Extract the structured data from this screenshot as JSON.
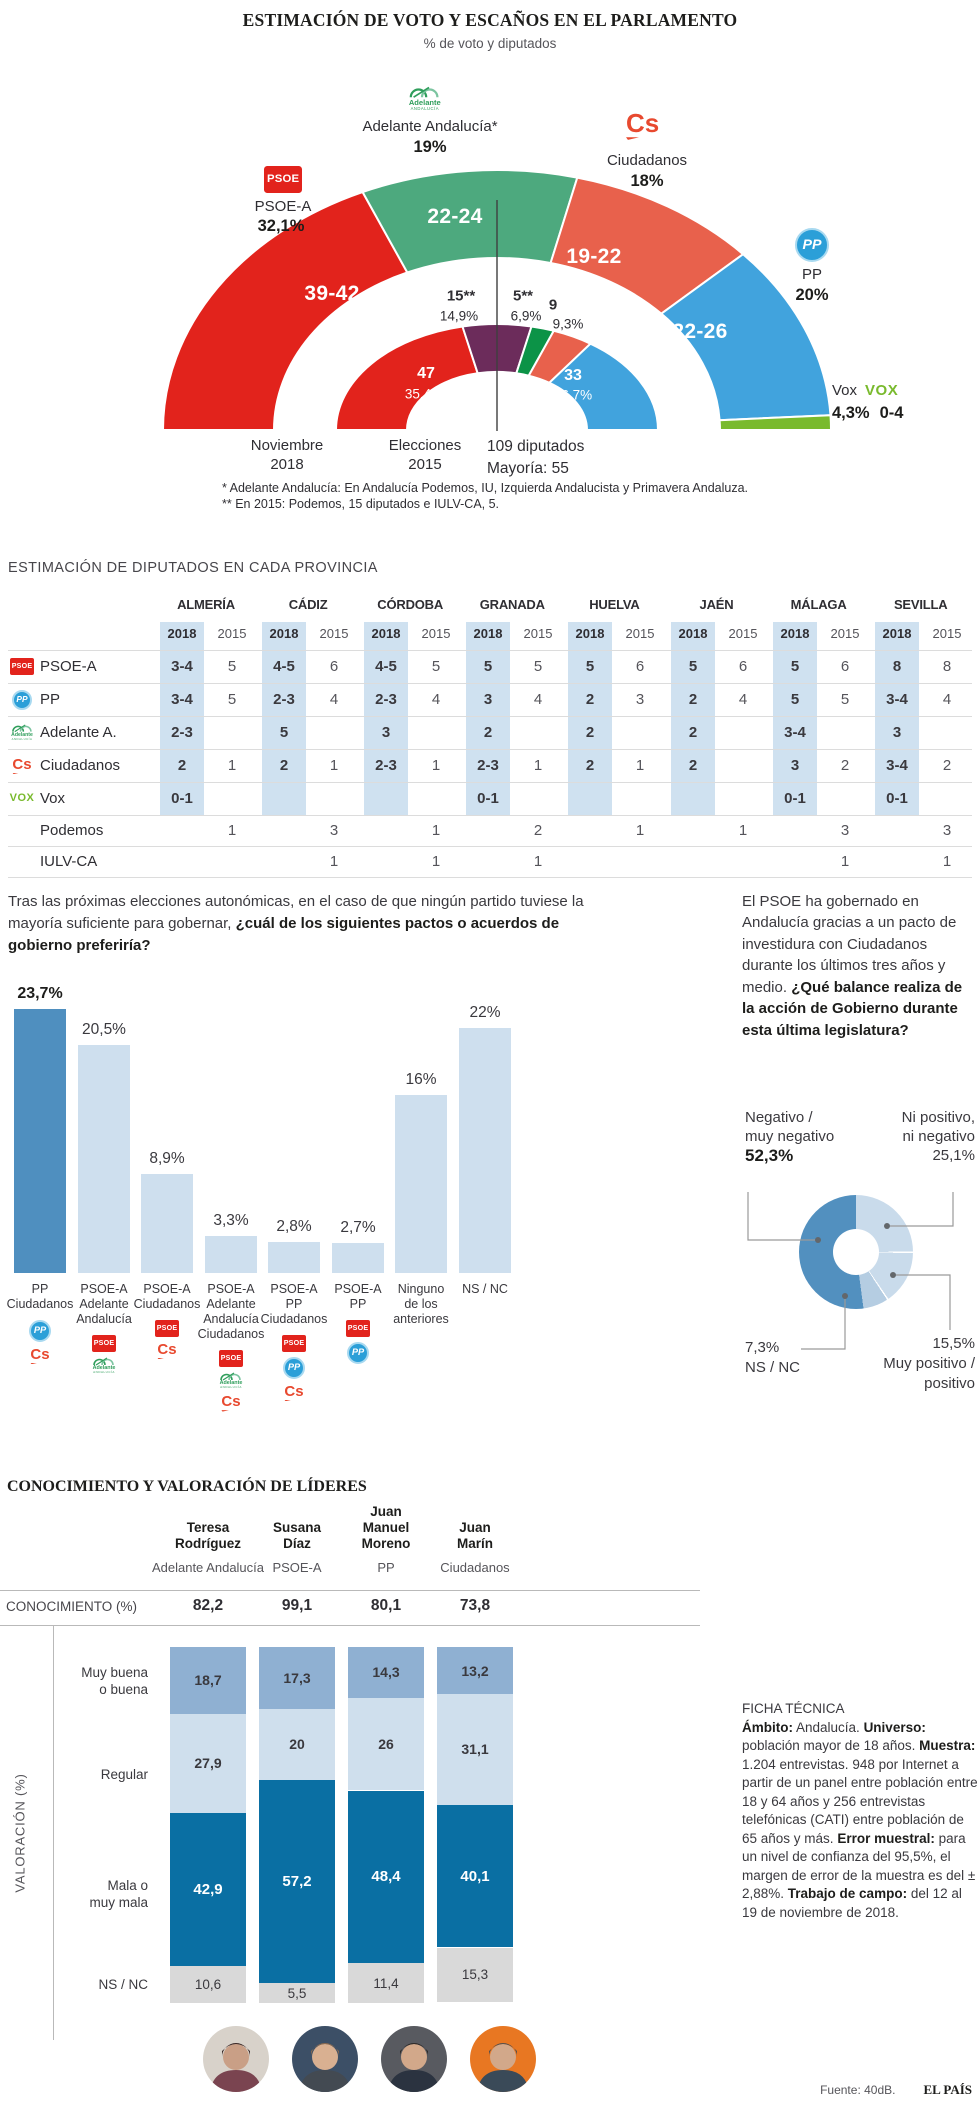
{
  "hemicycle": {
    "title": "ESTIMACIÓN DE VOTO Y ESCAÑOS EN EL PARLAMENTO",
    "subtitle": "% de voto y diputados",
    "axis_2018": [
      "Noviembre",
      "2018"
    ],
    "axis_2015": [
      "Elecciones",
      "2015"
    ],
    "total_label": [
      "109 diputados",
      "Mayoría: 55"
    ],
    "footnote1": "* Adelante Andalucía: En Andalucía Podemos, IU, Izquierda Andalucista y Primavera Andaluza.",
    "footnote2": "** En 2015: Podemos, 15 diputados e IULV-CA, 5.",
    "chart_data": {
      "type": "hemicycle",
      "total_seats": 109,
      "majority": 55,
      "outer_ring_2018": [
        {
          "party": "PSOE-A",
          "vote_pct": "32,1%",
          "seats_label": "39-42",
          "seats": 40.5,
          "color": "#e2231c",
          "logo": "psoe"
        },
        {
          "party": "Adelante Andalucía*",
          "vote_pct": "19%",
          "seats_label": "22-24",
          "seats": 23,
          "color": "#4da97e",
          "logo": "adelante"
        },
        {
          "party": "Ciudadanos",
          "vote_pct": "18%",
          "seats_label": "19-22",
          "seats": 20.5,
          "color": "#e8614c",
          "logo": "cs"
        },
        {
          "party": "PP",
          "vote_pct": "20%",
          "seats_label": "22-26",
          "seats": 24,
          "color": "#41a3dd",
          "logo": "pp"
        },
        {
          "party": "Vox",
          "vote_pct": "4,3%",
          "seats_label": "0-4",
          "seats": 2,
          "color": "#79ba2d",
          "logo": "vox"
        }
      ],
      "inner_ring_2015": [
        {
          "party": "PSOE",
          "seats": 47,
          "seats_label": "47",
          "vote_pct": "35,4%",
          "color": "#e2231c"
        },
        {
          "party": "Podemos",
          "seats": 15,
          "seats_label": "15**",
          "vote_pct": "14,9%",
          "color": "#6c2c5b"
        },
        {
          "party": "IULV-CA",
          "seats": 5,
          "seats_label": "5**",
          "vote_pct": "6,9%",
          "color": "#0c9347"
        },
        {
          "party": "Ciudadanos",
          "seats": 9,
          "seats_label": "9",
          "vote_pct": "9,3%",
          "color": "#e8614c"
        },
        {
          "party": "PP",
          "seats": 33,
          "seats_label": "33",
          "vote_pct": "26,7%",
          "color": "#41a3dd"
        }
      ]
    }
  },
  "logos": {
    "psoe": {
      "text": "PSOE",
      "bg": "#e2231c",
      "fg": "#ffffff"
    },
    "pp": {
      "text": "PP",
      "bg": "#2b9fd8",
      "ring": "#a8d9f0",
      "fg": "#ffffff"
    },
    "cs": {
      "text": "Cs",
      "color": "#e8492f"
    },
    "adelante": {
      "line1": "Adelante",
      "line2": "ANDALUCÍA",
      "color": "#2f9e5b",
      "arc2": "#7cc4a0"
    },
    "vox": {
      "text": "VOX",
      "color": "#79ba2d"
    }
  },
  "table": {
    "title": "ESTIMACIÓN DE DIPUTADOS EN CADA PROVINCIA",
    "provinces": [
      "ALMERÍA",
      "CÁDIZ",
      "CÓRDOBA",
      "GRANADA",
      "HUELVA",
      "JAÉN",
      "MÁLAGA",
      "SEVILLA"
    ],
    "years": [
      "2018",
      "2015"
    ],
    "highlight_color": "#cfe1f0",
    "rows": [
      {
        "party": "PSOE-A",
        "logo": "psoe",
        "values": [
          "3-4",
          "5",
          "4-5",
          "6",
          "4-5",
          "5",
          "5",
          "5",
          "5",
          "6",
          "5",
          "6",
          "5",
          "6",
          "8",
          "8"
        ]
      },
      {
        "party": "PP",
        "logo": "pp",
        "values": [
          "3-4",
          "5",
          "2-3",
          "4",
          "2-3",
          "4",
          "3",
          "4",
          "2",
          "3",
          "2",
          "4",
          "5",
          "5",
          "3-4",
          "4"
        ]
      },
      {
        "party": "Adelante A.",
        "logo": "adelante",
        "values": [
          "2-3",
          "",
          "5",
          "",
          "3",
          "",
          "2",
          "",
          "2",
          "",
          "2",
          "",
          "3-4",
          "",
          "3",
          ""
        ]
      },
      {
        "party": "Ciudadanos",
        "logo": "cs",
        "values": [
          "2",
          "1",
          "2",
          "1",
          "2-3",
          "1",
          "2-3",
          "1",
          "2",
          "1",
          "2",
          "",
          "3",
          "2",
          "3-4",
          "2"
        ]
      },
      {
        "party": "Vox",
        "logo": "vox",
        "values": [
          "0-1",
          "",
          "",
          "",
          "",
          "",
          "0-1",
          "",
          "",
          "",
          "",
          "",
          "0-1",
          "",
          "0-1",
          ""
        ]
      }
    ],
    "rows_2015_only": [
      {
        "party": "Podemos",
        "values": [
          "",
          "1",
          "",
          "3",
          "",
          "1",
          "",
          "2",
          "",
          "1",
          "",
          "1",
          "",
          "3",
          "",
          "3"
        ]
      },
      {
        "party": "IULV-CA",
        "values": [
          "",
          "",
          "",
          "1",
          "",
          "1",
          "",
          "1",
          "",
          "",
          "",
          "",
          "",
          "1",
          "",
          "1"
        ]
      }
    ]
  },
  "pactos": {
    "question": [
      {
        "t": "Tras las próximas elecciones autonómicas, en el caso de que ningún partido tuviese la mayoría suficiente para gobernar, "
      },
      {
        "t": "¿cuál de los siguientes pactos o acuerdos de gobierno preferiría?",
        "b": true
      }
    ],
    "chart_data": {
      "type": "bar",
      "categories": [
        [
          "PP",
          "Ciudadanos"
        ],
        [
          "PSOE-A",
          "Adelante",
          "Andalucía"
        ],
        [
          "PSOE-A",
          "Ciudadanos"
        ],
        [
          "PSOE-A",
          "Adelante",
          "Andalucía",
          "Ciudadanos"
        ],
        [
          "PSOE-A",
          "PP",
          "Ciudadanos"
        ],
        [
          "PSOE-A",
          "PP"
        ],
        [
          "Ninguno",
          "de los",
          "anteriores"
        ],
        [
          "NS / NC"
        ]
      ],
      "values": [
        23.7,
        20.5,
        8.9,
        3.3,
        2.8,
        2.7,
        16,
        22
      ],
      "value_labels": [
        "23,7%",
        "20,5%",
        "8,9%",
        "3,3%",
        "2,8%",
        "2,7%",
        "16%",
        "22%"
      ],
      "logos": [
        [
          "pp",
          "cs"
        ],
        [
          "psoe",
          "adelante"
        ],
        [
          "psoe",
          "cs"
        ],
        [
          "psoe",
          "adelante",
          "cs"
        ],
        [
          "psoe",
          "pp",
          "cs"
        ],
        [
          "psoe",
          "pp"
        ],
        [],
        []
      ],
      "bar_color": "#cedfee",
      "highlight_color": "#4f8fbf",
      "highlight_index": 0,
      "ylim": [
        0,
        25
      ]
    }
  },
  "balance": {
    "intro": [
      {
        "t": "El PSOE ha gobernado en Andalucía gracias a un pacto de investidura con Ciudadanos durante los últimos tres años y medio. "
      },
      {
        "t": "¿Qué balance realiza de la acción de Gobierno durante esta última legislatura?",
        "b": true
      }
    ],
    "chart_data": {
      "type": "pie",
      "slices": [
        {
          "label": "Ni positivo, ni negativo",
          "pct": 25.1,
          "color": "#c9dbeb",
          "separator_after": true
        },
        {
          "label": "Muy positivo / positivo",
          "pct": 15.5,
          "color": "#c9dbeb",
          "separator_after": true
        },
        {
          "label": "NS / NC",
          "pct": 7.3,
          "color": "#b5cde2",
          "separator_after": false
        },
        {
          "label": "Negativo / muy negativo",
          "pct": 52.3,
          "color": "#5290bf",
          "separator_after": false
        }
      ]
    },
    "labels": {
      "negative": {
        "lines": [
          "Negativo /",
          "muy negativo"
        ],
        "value": "52,3%"
      },
      "neutral": {
        "lines": [
          "Ni positivo,",
          "ni negativo"
        ],
        "value": "25,1%"
      },
      "nsnc": {
        "value": "7,3%",
        "lines": [
          "NS / NC"
        ]
      },
      "positive": {
        "value": "15,5%",
        "lines": [
          "Muy positivo /",
          "positivo"
        ]
      }
    }
  },
  "leaders": {
    "title": "CONOCIMIENTO Y VALORACIÓN DE LÍDERES",
    "conocimiento_label": "CONOCIMIENTO (%)",
    "valoracion_label": "VALORACIÓN (%)",
    "chart_data": {
      "type": "stacked-bar",
      "row_labels": [
        [
          "Muy buena",
          "o buena"
        ],
        [
          "Regular"
        ],
        [
          "Mala o",
          "muy mala"
        ],
        [
          "NS / NC"
        ]
      ],
      "segment_colors": [
        "#8fb0d2",
        "#cfdfed",
        "#0a6fa3",
        "#d9d9d9"
      ],
      "leaders": [
        {
          "name": [
            "Teresa",
            "Rodríguez"
          ],
          "party": "Adelante Andalucía",
          "conocimiento": "82,2",
          "values": [
            18.7,
            27.9,
            42.9,
            10.6
          ],
          "value_labels": [
            "18,7",
            "27,9",
            "42,9",
            "10,6"
          ],
          "avatar": {
            "bg": "#d8d2ca",
            "skin": "#c99f86",
            "hair": "#3a2826",
            "shirt": "#7a4450"
          }
        },
        {
          "name": [
            "Susana",
            "Díaz"
          ],
          "party": "PSOE-A",
          "conocimiento": "99,1",
          "values": [
            17.3,
            20,
            57.2,
            5.5
          ],
          "value_labels": [
            "17,3",
            "20",
            "57,2",
            "5,5"
          ],
          "avatar": {
            "bg": "#3c4f66",
            "skin": "#d9b091",
            "hair": "#8a6a4f",
            "shirt": "#434a52"
          }
        },
        {
          "name": [
            "Juan",
            "Manuel",
            "Moreno"
          ],
          "party": "PP",
          "conocimiento": "80,1",
          "values": [
            14.3,
            26,
            48.4,
            11.4
          ],
          "value_labels": [
            "14,3",
            "26",
            "48,4",
            "11,4"
          ],
          "avatar": {
            "bg": "#585a60",
            "skin": "#d2a88a",
            "hair": "#2e2a28",
            "shirt": "#2b3340"
          }
        },
        {
          "name": [
            "Juan",
            "Marín"
          ],
          "party": "Ciudadanos",
          "conocimiento": "73,8",
          "values": [
            13.2,
            31.1,
            40.1,
            15.3
          ],
          "value_labels": [
            "13,2",
            "31,1",
            "40,1",
            "15,3"
          ],
          "avatar": {
            "bg": "#e87722",
            "skin": "#d2a88a",
            "hair": "#57504c",
            "shirt": "#3a4a58"
          }
        }
      ]
    }
  },
  "ficha": {
    "title": "FICHA TÉCNICA",
    "body": [
      {
        "t": "Ámbito:",
        "b": true
      },
      {
        "t": " Andalucía. "
      },
      {
        "t": "Universo:",
        "b": true
      },
      {
        "t": " población mayor de 18 años. "
      },
      {
        "t": "Muestra:",
        "b": true
      },
      {
        "t": " 1.204 entrevistas. 948 por Internet a partir de un panel entre población entre 18 y 64 años y 256 entrevistas telefónicas (CATI) entre población de 65 años y más. "
      },
      {
        "t": "Error muestral:",
        "b": true
      },
      {
        "t": " para un nivel de confianza del 95,5%, el margen de error de la muestra es del ± 2,88%. "
      },
      {
        "t": "Trabajo de campo:",
        "b": true
      },
      {
        "t": " del 12 al 19 de noviembre de 2018."
      }
    ]
  },
  "footer": {
    "source": "Fuente: 40dB.",
    "brand": "EL PAÍS"
  }
}
